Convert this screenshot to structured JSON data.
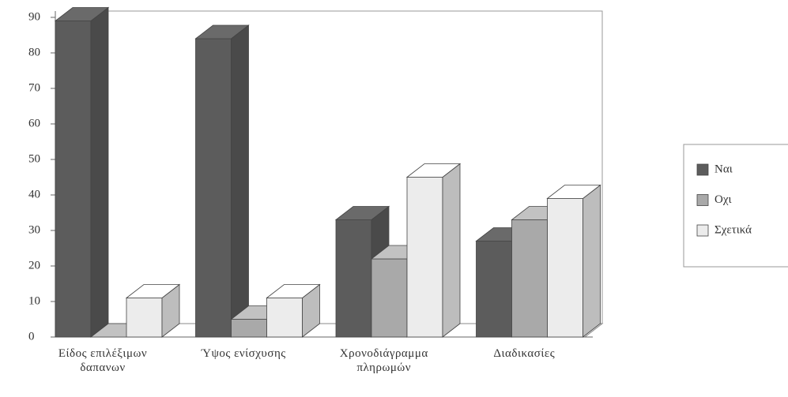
{
  "chart_data": {
    "type": "bar3d",
    "categories": [
      "Είδος επιλέξιμων δαπανων",
      "Ύψος ενίσχυσης",
      "Χρονοδιάγραμμα πληρωμών",
      "Διαδικασίες"
    ],
    "series": [
      {
        "name": "Ναι",
        "color": "#5c5c5c",
        "values": [
          89,
          84,
          33,
          27
        ]
      },
      {
        "name": "Οχι",
        "color": "#a9a9a9",
        "values": [
          0,
          5,
          22,
          33
        ]
      },
      {
        "name": "Σχετικά",
        "color": "#ececec",
        "values": [
          11,
          11,
          45,
          39
        ]
      }
    ],
    "ylim": [
      0,
      90
    ],
    "yticks": [
      0,
      10,
      20,
      30,
      40,
      50,
      60,
      70,
      80,
      90
    ],
    "legend": "right"
  }
}
